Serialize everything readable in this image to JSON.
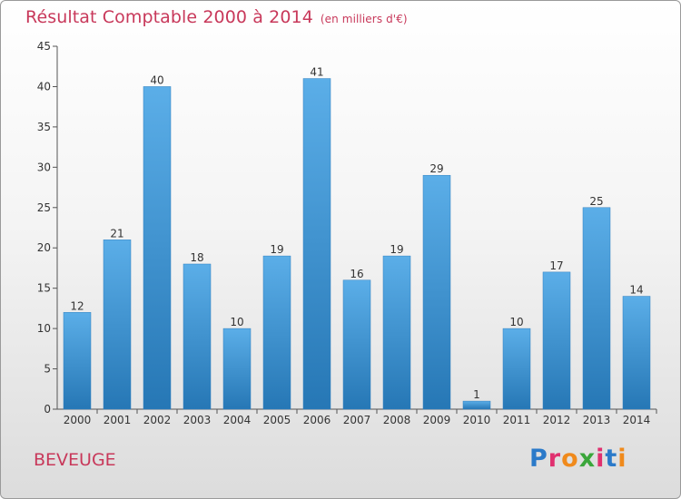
{
  "title": "Résultat Comptable 2000 à 2014",
  "subtitle": "(en milliers d'€)",
  "commune": "BEVEUGE",
  "logo": {
    "text": "Proxiti",
    "colors": [
      "#2b7ac9",
      "#e0306f",
      "#f08a1c",
      "#3aa63a",
      "#e0306f",
      "#2b7ac9",
      "#f08a1c"
    ]
  },
  "colors": {
    "title": "#c8385a",
    "bar_top": "#5baee8",
    "bar_bottom": "#2677b5",
    "axis": "#555555"
  },
  "chart_data": {
    "type": "bar",
    "categories": [
      "2000",
      "2001",
      "2002",
      "2003",
      "2004",
      "2005",
      "2006",
      "2007",
      "2008",
      "2009",
      "2010",
      "2011",
      "2012",
      "2013",
      "2014"
    ],
    "values": [
      12,
      21,
      40,
      18,
      10,
      19,
      41,
      16,
      19,
      29,
      1,
      10,
      17,
      25,
      14
    ],
    "ylim": [
      0,
      45
    ],
    "yticks": [
      0,
      5,
      10,
      15,
      20,
      25,
      30,
      35,
      40,
      45
    ],
    "grid": false,
    "data_labels": true
  }
}
